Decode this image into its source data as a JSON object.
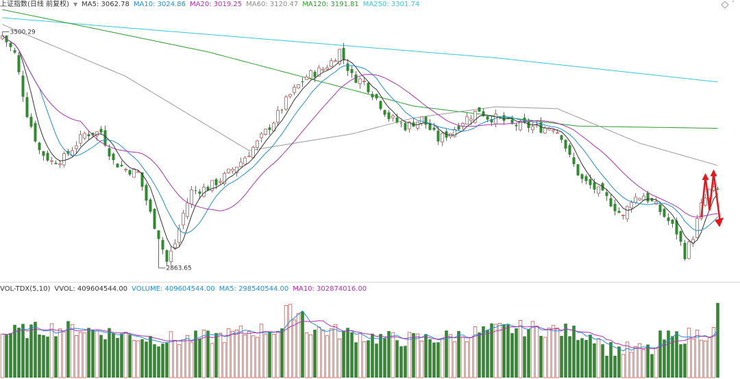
{
  "chart_data": [
    {
      "type": "candlestick",
      "title": "上证指数(日线 前复权)",
      "ma_legend": [
        {
          "name": "MA5",
          "value": "3062.78",
          "color": "#333333"
        },
        {
          "name": "MA10",
          "value": "3024.86",
          "color": "#1e90d6"
        },
        {
          "name": "MA20",
          "value": "3019.25",
          "color": "#b030b0"
        },
        {
          "name": "MA60",
          "value": "3120.47",
          "color": "#8c8c8c"
        },
        {
          "name": "MA120",
          "value": "3191.81",
          "color": "#2e9e2e"
        },
        {
          "name": "MA250",
          "value": "3301.74",
          "color": "#36c8d8"
        }
      ],
      "annotations": [
        {
          "label": "3500.29",
          "kind": "high",
          "price": 3500.29
        },
        {
          "label": "2863.65",
          "kind": "low",
          "price": 2863.65
        }
      ],
      "ylim": [
        2830,
        3560
      ],
      "bar_count": 175,
      "up_color": "#e8483c",
      "down_color": "#2e8b2e",
      "trend_arrow_color": "#e8161c",
      "ma_shape_points": {
        "MA250": [
          [
            0,
            3538
          ],
          [
            60,
            3484
          ],
          [
            120,
            3430
          ],
          [
            174,
            3365
          ]
        ],
        "MA120": [
          [
            0,
            3560
          ],
          [
            50,
            3446
          ],
          [
            100,
            3300
          ],
          [
            140,
            3246
          ],
          [
            174,
            3240
          ]
        ],
        "MA60": [
          [
            0,
            3520
          ],
          [
            30,
            3380
          ],
          [
            60,
            3180
          ],
          [
            85,
            3225
          ],
          [
            100,
            3268
          ],
          [
            120,
            3298
          ],
          [
            135,
            3293
          ],
          [
            155,
            3200
          ],
          [
            174,
            3140
          ]
        ]
      }
    },
    {
      "type": "bar",
      "title": "VOL-TDX(5,10)",
      "legend": [
        {
          "name": "VVOL",
          "value": "409604544.00",
          "color": "#333333"
        },
        {
          "name": "VOLUME",
          "value": "409604544.00",
          "color": "#1e90d6"
        },
        {
          "name": "MA5",
          "value": "298540544.00",
          "color": "#1e90d6"
        },
        {
          "name": "MA10",
          "value": "302874016.00",
          "color": "#b030b0"
        }
      ],
      "last_volume": 409604544,
      "ylim": [
        0,
        450000000
      ]
    }
  ]
}
